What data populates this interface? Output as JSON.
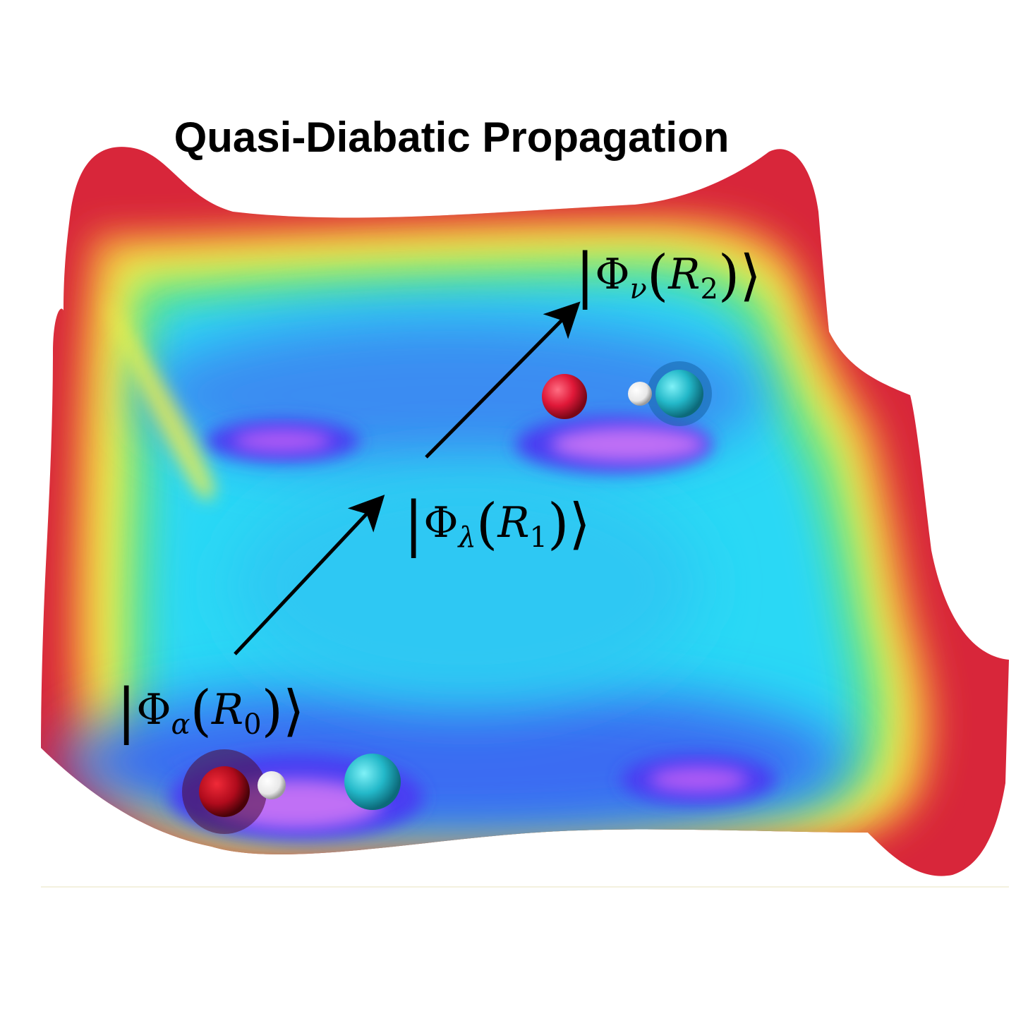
{
  "title": "Quasi-Diabatic Propagation",
  "states": [
    {
      "prefix": "|",
      "phi": "Φ",
      "sub": "α",
      "open": "(",
      "R": "R",
      "rsub": "0",
      "close": ")",
      "angle": "⟩"
    },
    {
      "prefix": "|",
      "phi": "Φ",
      "sub": "λ",
      "open": "(",
      "R": "R",
      "rsub": "1",
      "close": ")",
      "angle": "⟩"
    },
    {
      "prefix": "|",
      "phi": "Φ",
      "sub": "ν",
      "open": "(",
      "R": "R",
      "rsub": "2",
      "close": ")",
      "angle": "⟩"
    }
  ],
  "colors": {
    "surface_red": "#d8263a",
    "surface_yellow": "#f2ef4a",
    "surface_green": "#62e38c",
    "surface_cyan": "#2ad8f5",
    "surface_blue": "#3a56f2",
    "surface_violet": "#b15cf5",
    "atom_red": "#e01838",
    "atom_cyan": "#23b8c9",
    "atom_white": "#ffffff",
    "arrow": "#000000"
  }
}
